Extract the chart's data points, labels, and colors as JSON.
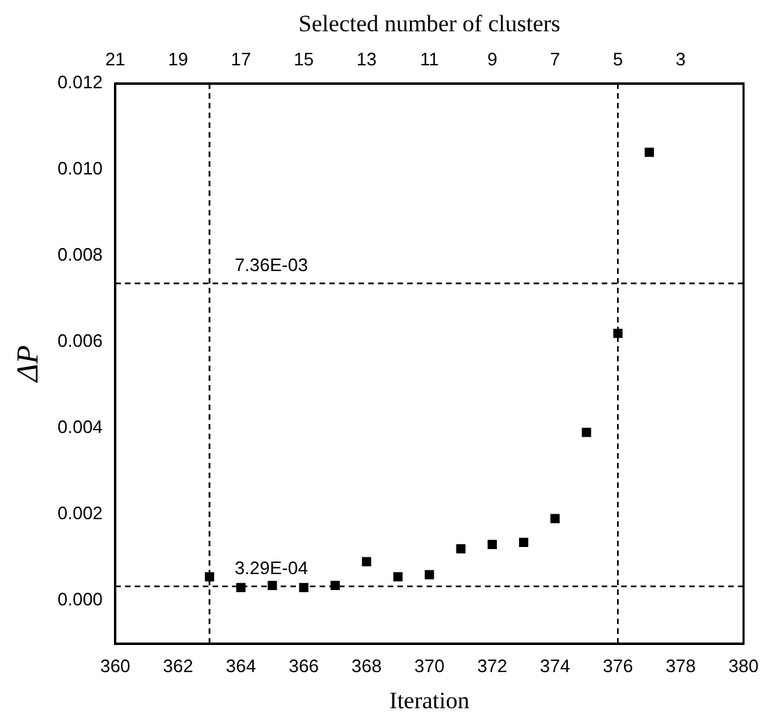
{
  "chart_data": {
    "type": "scatter",
    "xlabel": "Iteration",
    "ylabel": "ΔP",
    "x2label": "Selected number of clusters",
    "x": [
      363,
      364,
      365,
      366,
      367,
      368,
      369,
      370,
      371,
      372,
      373,
      374,
      375,
      376,
      377
    ],
    "series": [
      {
        "color": "#000000",
        "values": [
          0.00055,
          0.0003,
          0.00035,
          0.0003,
          0.00035,
          0.0009,
          0.00055,
          0.0006,
          0.0012,
          0.0013,
          0.00135,
          0.0019,
          0.0039,
          0.0062,
          0.0104
        ]
      }
    ],
    "xlim": [
      360,
      380
    ],
    "xticks": [
      360,
      362,
      364,
      366,
      368,
      370,
      372,
      374,
      376,
      378,
      380
    ],
    "x2lim": [
      21,
      1
    ],
    "x2ticks": [
      21,
      19,
      17,
      15,
      13,
      11,
      9,
      7,
      5,
      3
    ],
    "ylim": [
      -0.001,
      0.012
    ],
    "yticks": [
      {
        "value": 0,
        "label": "0.000"
      },
      {
        "value": 0.002,
        "label": "0.002"
      },
      {
        "value": 0.004,
        "label": "0.004"
      },
      {
        "value": 0.006,
        "label": "0.006"
      },
      {
        "value": 0.008,
        "label": "0.008"
      },
      {
        "value": 0.01,
        "label": "0.010"
      },
      {
        "value": 0.012,
        "label": "0.012"
      }
    ],
    "ref_lines": [
      {
        "axis": "y",
        "value": 0.00736,
        "label": "7.36E-03",
        "line_style": "dashed"
      },
      {
        "axis": "y",
        "value": 0.000329,
        "label": "3.29E-04",
        "line_style": "dashed"
      },
      {
        "axis": "x",
        "value": 363,
        "line_style": "dashed"
      },
      {
        "axis": "x",
        "value": 376,
        "line_style": "dashed"
      }
    ],
    "marker": "square",
    "grid": false,
    "legend": false
  }
}
